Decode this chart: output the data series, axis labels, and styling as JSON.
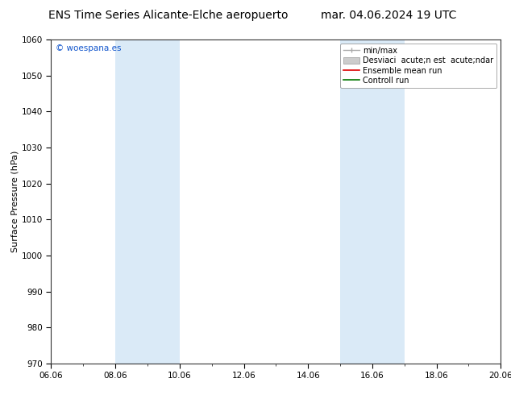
{
  "title_left": "ENS Time Series Alicante-Elche aeropuerto",
  "title_right": "mar. 04.06.2024 19 UTC",
  "ylabel": "Surface Pressure (hPa)",
  "ylim": [
    970,
    1060
  ],
  "yticks": [
    970,
    980,
    990,
    1000,
    1010,
    1020,
    1030,
    1040,
    1050,
    1060
  ],
  "xlim_num": [
    0,
    14
  ],
  "xtick_labels": [
    "06.06",
    "08.06",
    "10.06",
    "12.06",
    "14.06",
    "16.06",
    "18.06",
    "20.06"
  ],
  "xtick_positions": [
    0,
    2,
    4,
    6,
    8,
    10,
    12,
    14
  ],
  "shaded_regions": [
    {
      "xmin": 2.0,
      "xmax": 4.0
    },
    {
      "xmin": 9.0,
      "xmax": 11.0
    }
  ],
  "shade_color": "#daeaf7",
  "bg_color": "#ffffff",
  "watermark": "© woespana.es",
  "legend_label_minmax": "min/max",
  "legend_label_std": "Desviaci  acute;n est  acute;ndar",
  "legend_label_ens": "Ensemble mean run",
  "legend_label_ctrl": "Controll run",
  "color_minmax": "#aaaaaa",
  "color_std": "#cccccc",
  "color_ens": "#dd0000",
  "color_ctrl": "#007700",
  "title_fontsize": 10,
  "tick_fontsize": 7.5,
  "ylabel_fontsize": 8,
  "legend_fontsize": 7,
  "watermark_fontsize": 7.5,
  "watermark_color": "#1155cc"
}
